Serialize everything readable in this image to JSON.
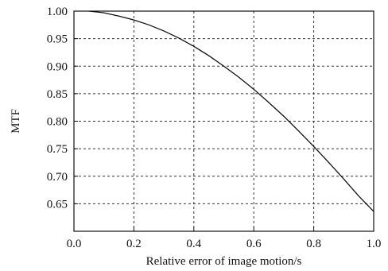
{
  "chart_data": {
    "type": "line",
    "xlabel": "Relative error of image motion/s",
    "ylabel": "MTF",
    "xlim": [
      0.0,
      1.0
    ],
    "ylim": [
      0.6,
      1.0
    ],
    "x_ticks": [
      "0.0",
      "0.2",
      "0.4",
      "0.6",
      "0.8",
      "1.0"
    ],
    "y_ticks": [
      "1.00",
      "0.95",
      "0.90",
      "0.85",
      "0.80",
      "0.75",
      "0.70",
      "0.65"
    ],
    "grid": true,
    "series": [
      {
        "x": [
          0.05,
          0.1,
          0.15,
          0.2,
          0.25,
          0.3,
          0.35,
          0.4,
          0.45,
          0.5,
          0.55,
          0.6,
          0.65,
          0.7,
          0.75,
          0.8,
          0.85,
          0.9,
          0.95,
          1.0
        ],
        "y": [
          1.0,
          0.997,
          0.991,
          0.984,
          0.975,
          0.964,
          0.951,
          0.936,
          0.919,
          0.9,
          0.88,
          0.858,
          0.834,
          0.809,
          0.782,
          0.754,
          0.725,
          0.695,
          0.664,
          0.636
        ]
      }
    ]
  }
}
